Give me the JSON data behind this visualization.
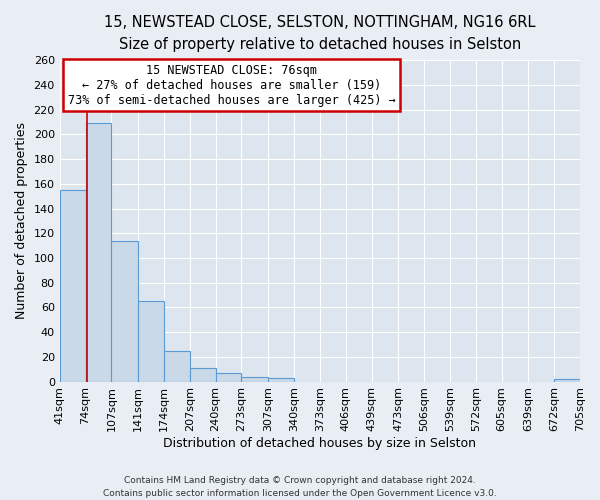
{
  "title_line1": "15, NEWSTEAD CLOSE, SELSTON, NOTTINGHAM, NG16 6RL",
  "title_line2": "Size of property relative to detached houses in Selston",
  "xlabel": "Distribution of detached houses by size in Selston",
  "ylabel": "Number of detached properties",
  "bin_edges": [
    41,
    74,
    107,
    141,
    174,
    207,
    240,
    273,
    307,
    340,
    373,
    406,
    439,
    473,
    506,
    539,
    572,
    605,
    639,
    672,
    705
  ],
  "bar_heights": [
    155,
    209,
    114,
    65,
    25,
    11,
    7,
    4,
    3,
    0,
    0,
    0,
    0,
    0,
    0,
    0,
    0,
    0,
    0,
    2
  ],
  "bar_color": "#c9d9e8",
  "bar_edge_color": "#5b9bd5",
  "vline_x": 76,
  "vline_color": "#cc0000",
  "annotation_title": "15 NEWSTEAD CLOSE: 76sqm",
  "annotation_line1": "← 27% of detached houses are smaller (159)",
  "annotation_line2": "73% of semi-detached houses are larger (425) →",
  "annotation_box_color": "#ffffff",
  "annotation_box_edge": "#cc0000",
  "ylim": [
    0,
    260
  ],
  "yticks": [
    0,
    20,
    40,
    60,
    80,
    100,
    120,
    140,
    160,
    180,
    200,
    220,
    240,
    260
  ],
  "tick_labels": [
    "41sqm",
    "74sqm",
    "107sqm",
    "141sqm",
    "174sqm",
    "207sqm",
    "240sqm",
    "273sqm",
    "307sqm",
    "340sqm",
    "373sqm",
    "406sqm",
    "439sqm",
    "473sqm",
    "506sqm",
    "539sqm",
    "572sqm",
    "605sqm",
    "639sqm",
    "672sqm",
    "705sqm"
  ],
  "footer_line1": "Contains HM Land Registry data © Crown copyright and database right 2024.",
  "footer_line2": "Contains public sector information licensed under the Open Government Licence v3.0.",
  "bg_color": "#e8eef4",
  "plot_bg_color": "#dde6ee",
  "grid_color": "#ffffff",
  "title_fontsize": 10.5,
  "subtitle_fontsize": 9.5,
  "axis_label_fontsize": 9,
  "tick_fontsize": 8,
  "footer_fontsize": 6.5
}
